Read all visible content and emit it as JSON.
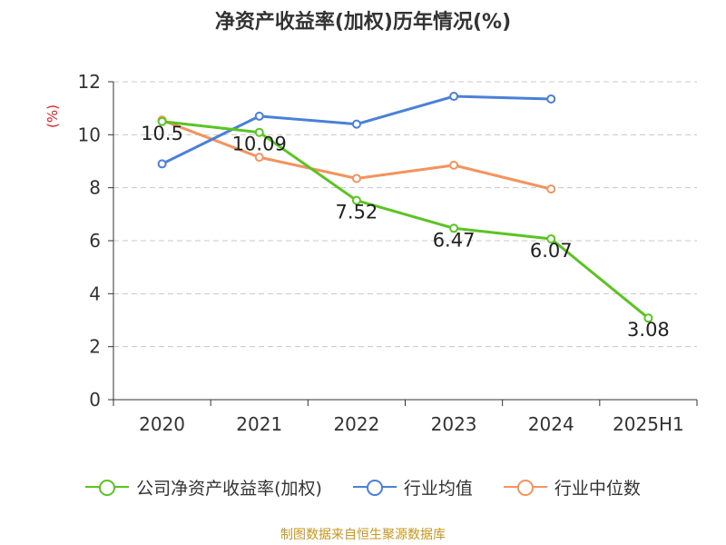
{
  "title": "净资产收益率(加权)历年情况(%)",
  "source": "制图数据来自恒生聚源数据库",
  "chart_data": {
    "type": "line",
    "title": "净资产收益率(加权)历年情况(%)",
    "ylabel": "(%)",
    "xlabel": "",
    "categories": [
      "2020",
      "2021",
      "2022",
      "2023",
      "2024",
      "2025H1"
    ],
    "ylim": [
      0,
      12
    ],
    "yticks": [
      0,
      2,
      4,
      6,
      8,
      10,
      12
    ],
    "grid": true,
    "legend_position": "bottom",
    "series": [
      {
        "name": "公司净资产收益率(加权)",
        "color": "#5ac522",
        "values": [
          10.5,
          10.09,
          7.52,
          6.47,
          6.07,
          3.08
        ],
        "labels": [
          "10.5",
          "10.09",
          "7.52",
          "6.47",
          "6.07",
          "3.08"
        ]
      },
      {
        "name": "行业均值",
        "color": "#4a80d9",
        "values": [
          8.9,
          10.7,
          10.4,
          11.45,
          11.35,
          null
        ]
      },
      {
        "name": "行业中位数",
        "color": "#f4935d",
        "values": [
          10.55,
          9.15,
          8.35,
          8.85,
          7.95,
          null
        ]
      }
    ]
  }
}
